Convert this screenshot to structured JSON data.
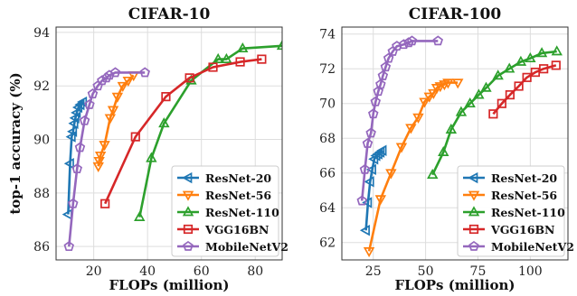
{
  "chart_data": [
    {
      "type": "line",
      "title": "CIFAR-10",
      "xlabel": "FLOPs (million)",
      "ylabel": "top-1 accuracy (%)",
      "xlim": [
        6,
        90
      ],
      "ylim": [
        85.5,
        94.2
      ],
      "xticks": [
        20,
        40,
        60,
        80
      ],
      "yticks": [
        86,
        88,
        90,
        92,
        94
      ],
      "grid": true,
      "legend": "lower-right",
      "series": [
        {
          "name": "ResNet-20",
          "color": "#1f77b4",
          "marker": "triangle-left",
          "x": [
            10.5,
            11.2,
            11.8,
            12.3,
            12.8,
            13.2,
            13.7,
            14.3,
            15.1,
            16.0
          ],
          "y": [
            87.2,
            89.1,
            90.1,
            90.3,
            90.6,
            90.8,
            91.0,
            91.2,
            91.3,
            91.4
          ]
        },
        {
          "name": "ResNet-56",
          "color": "#ff7f0e",
          "marker": "triangle-down",
          "x": [
            21.7,
            22.0,
            22.5,
            24.0,
            26.1,
            27.2,
            28.8,
            30.8,
            32.8,
            34.8
          ],
          "y": [
            89.0,
            89.2,
            89.4,
            89.8,
            90.8,
            91.1,
            91.6,
            92.0,
            92.2,
            92.4
          ]
        },
        {
          "name": "ResNet-110",
          "color": "#2ca02c",
          "marker": "triangle-up",
          "x": [
            37.0,
            41.4,
            46.1,
            56.2,
            66.2,
            69.3,
            75.3,
            90
          ],
          "y": [
            87.1,
            89.3,
            90.6,
            92.2,
            93.0,
            93.0,
            93.4,
            93.5
          ]
        },
        {
          "name": "VGG16BN",
          "color": "#d62728",
          "marker": "square",
          "x": [
            24.2,
            35.5,
            46.8,
            55.6,
            64.3,
            74.4,
            82.4
          ],
          "y": [
            87.6,
            90.1,
            91.6,
            92.3,
            92.7,
            92.9,
            93.0
          ]
        },
        {
          "name": "MobileNetV2",
          "color": "#9467bd",
          "marker": "pentagon",
          "x": [
            10.8,
            12.3,
            13.8,
            14.9,
            16.6,
            18.4,
            19.6,
            21.5,
            23.1,
            24.7,
            25.8,
            28.0,
            39.0
          ],
          "y": [
            86.0,
            87.6,
            88.9,
            89.7,
            90.7,
            91.3,
            91.7,
            92.0,
            92.2,
            92.3,
            92.4,
            92.5,
            92.5
          ]
        }
      ]
    },
    {
      "type": "line",
      "title": "CIFAR-100",
      "xlabel": "FLOPs (million)",
      "ylabel": "",
      "xlim": [
        10,
        118
      ],
      "ylim": [
        61,
        74.4
      ],
      "xticks": [
        25,
        50,
        75,
        100
      ],
      "yticks": [
        62,
        64,
        66,
        68,
        70,
        72,
        74
      ],
      "grid": true,
      "legend": "lower-right",
      "series": [
        {
          "name": "ResNet-20",
          "color": "#1f77b4",
          "marker": "triangle-left",
          "x": [
            21.5,
            22.5,
            23.5,
            24.5,
            25.5,
            26.5,
            27.5,
            28.5,
            29.5
          ],
          "y": [
            62.7,
            64.3,
            65.5,
            66.2,
            66.8,
            67.0,
            67.1,
            67.2,
            67.3
          ]
        },
        {
          "name": "ResNet-56",
          "color": "#ff7f0e",
          "marker": "triangle-down",
          "x": [
            23.0,
            28.5,
            33.5,
            38.5,
            43.0,
            46.5,
            49.5,
            51.8,
            53.8,
            55.4,
            57.0,
            59.0,
            60.7,
            65.4
          ],
          "y": [
            61.5,
            64.5,
            66.0,
            67.5,
            68.6,
            69.2,
            70.1,
            70.4,
            70.6,
            70.9,
            71.0,
            71.1,
            71.2,
            71.2
          ]
        },
        {
          "name": "ResNet-110",
          "color": "#2ca02c",
          "marker": "triangle-up",
          "x": [
            53.3,
            58.5,
            62.2,
            67.0,
            71.2,
            75.4,
            78.9,
            84.6,
            90.0,
            95.5,
            100.0,
            105.5,
            112.7
          ],
          "y": [
            65.9,
            67.2,
            68.5,
            69.5,
            70.0,
            70.5,
            70.9,
            71.6,
            72.0,
            72.4,
            72.6,
            72.9,
            73.0
          ]
        },
        {
          "name": "VGG16BN",
          "color": "#d62728",
          "marker": "square",
          "x": [
            82.3,
            86.4,
            90.3,
            94.5,
            98.4,
            102.4,
            106.4,
            112.3
          ],
          "y": [
            69.4,
            70.0,
            70.5,
            71.0,
            71.5,
            71.8,
            72.0,
            72.2
          ]
        },
        {
          "name": "MobileNetV2",
          "color": "#9467bd",
          "marker": "pentagon",
          "x": [
            19.6,
            21.0,
            22.3,
            23.9,
            25.0,
            26.1,
            27.4,
            28.5,
            29.6,
            30.9,
            32.3,
            34.3,
            36.3,
            39.6,
            41.9,
            43.5,
            55.9
          ],
          "y": [
            64.4,
            66.2,
            67.7,
            68.3,
            69.4,
            70.1,
            70.7,
            71.1,
            71.6,
            72.1,
            72.6,
            73.0,
            73.3,
            73.4,
            73.5,
            73.6,
            73.6
          ]
        }
      ]
    }
  ]
}
